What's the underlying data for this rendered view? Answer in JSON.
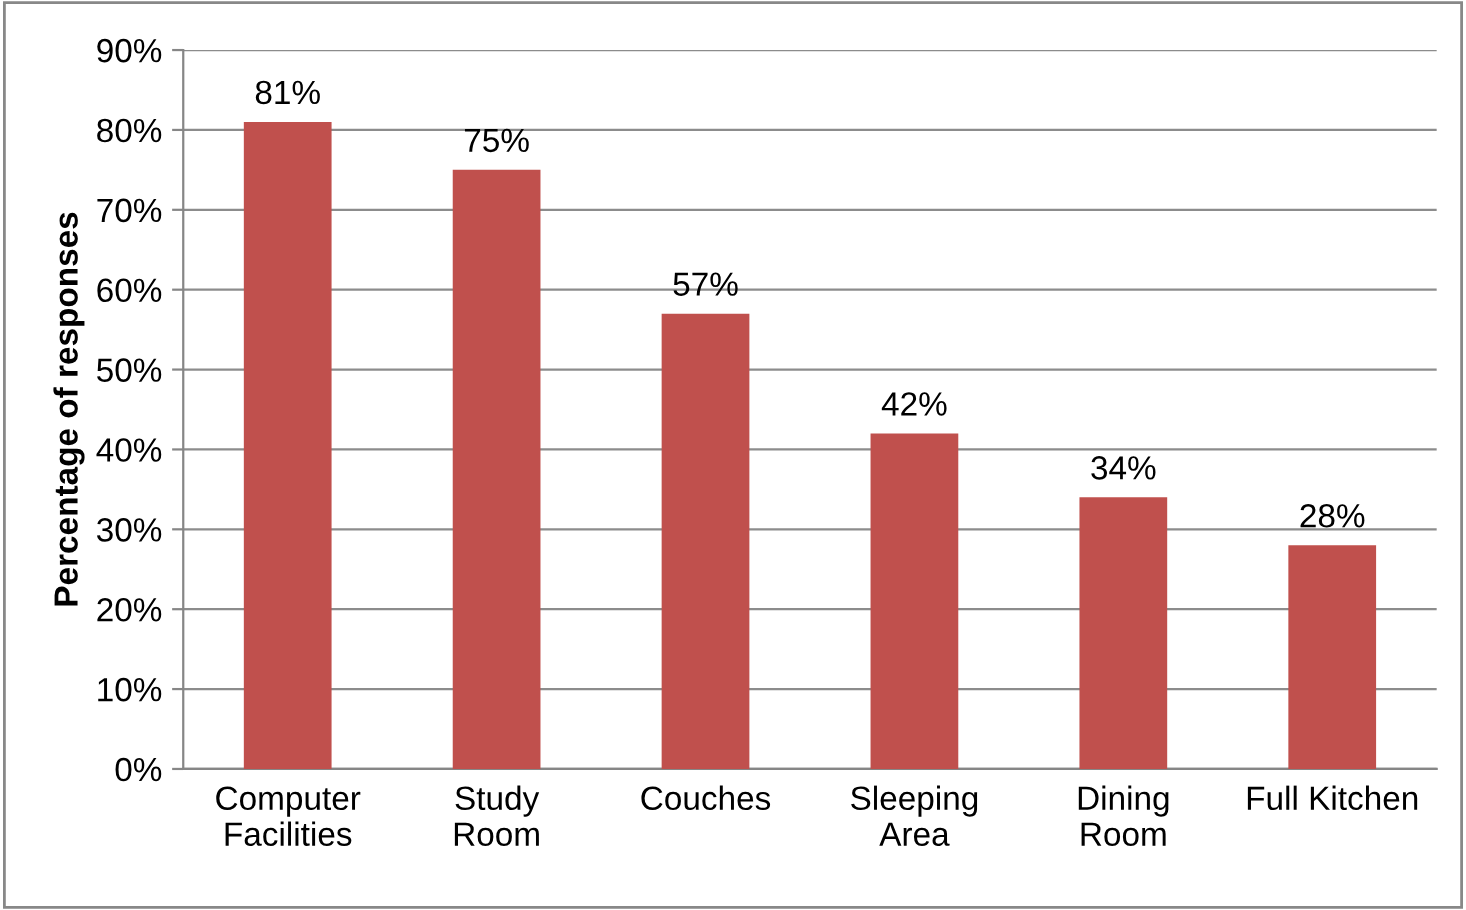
{
  "chart_data": {
    "type": "bar",
    "ylabel": "Percentage of responses",
    "categories": [
      "Computer\nFacilities",
      "Study\nRoom",
      "Couches",
      "Sleeping\nArea",
      "Dining\nRoom",
      "Full Kitchen"
    ],
    "values": [
      81,
      75,
      57,
      42,
      34,
      28
    ],
    "value_labels": [
      "81%",
      "75%",
      "57%",
      "42%",
      "34%",
      "28%"
    ],
    "color": "#c0504d",
    "ylim": [
      0,
      90
    ],
    "yticks": [
      {
        "value": 0,
        "label": "0%"
      },
      {
        "value": 10,
        "label": "10%"
      },
      {
        "value": 20,
        "label": "20%"
      },
      {
        "value": 30,
        "label": "30%"
      },
      {
        "value": 40,
        "label": "40%"
      },
      {
        "value": 50,
        "label": "50%"
      },
      {
        "value": 60,
        "label": "60%"
      },
      {
        "value": 70,
        "label": "70%"
      },
      {
        "value": 80,
        "label": "80%"
      },
      {
        "value": 90,
        "label": "90%"
      }
    ],
    "grid": "y",
    "legend": false
  }
}
